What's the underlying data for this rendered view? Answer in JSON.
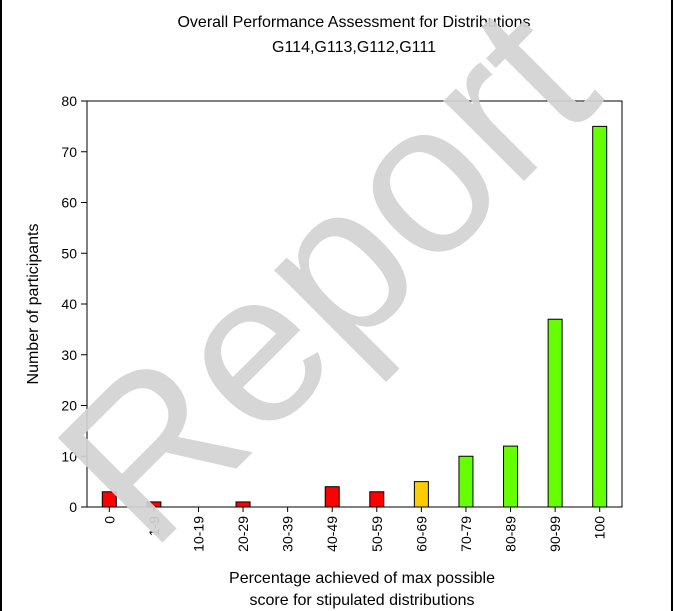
{
  "chart_data": {
    "type": "bar",
    "title": "Overall Performance Assessment for Distributions",
    "subtitle": "G114,G113,G112,G111",
    "xlabel": [
      "Percentage achieved of max possible",
      "score for stipulated distributions"
    ],
    "ylabel": "Number of participants",
    "categories": [
      "0",
      "1-9",
      "10-19",
      "20-29",
      "30-39",
      "40-49",
      "50-59",
      "60-69",
      "70-79",
      "80-89",
      "90-99",
      "100"
    ],
    "values": [
      3,
      1,
      0,
      1,
      0,
      4,
      3,
      5,
      10,
      12,
      37,
      75
    ],
    "bar_colors": [
      "#ff0000",
      "#ff0000",
      "#ff0000",
      "#ff0000",
      "#ff0000",
      "#ff0000",
      "#ff0000",
      "#ffcc00",
      "#66ff00",
      "#66ff00",
      "#66ff00",
      "#66ff00"
    ],
    "ylim": [
      0,
      80
    ],
    "yticks": [
      0,
      10,
      20,
      30,
      40,
      50,
      60,
      70,
      80
    ],
    "grid": false,
    "legend": "none"
  },
  "watermark": "Report"
}
